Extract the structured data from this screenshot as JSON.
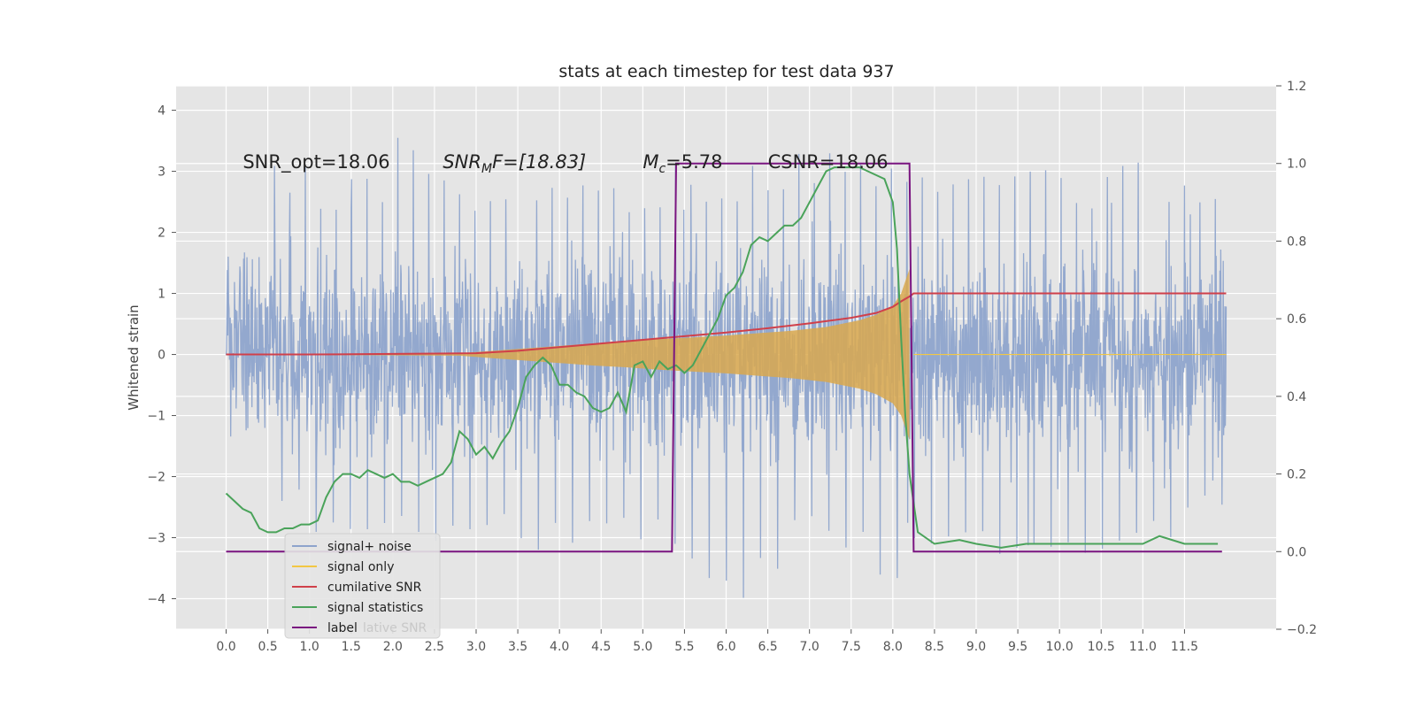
{
  "chart_data": {
    "type": "line",
    "title": "stats at each timestep for test data 937",
    "xlabel": "",
    "ylabel": "Whitened strain",
    "y2label": "",
    "xlim": [
      -0.6,
      12.6
    ],
    "ylim": [
      -4.5,
      4.4
    ],
    "y2lim": [
      -0.2,
      1.2
    ],
    "grid": true,
    "legend_position": "lower-left",
    "xticks": [
      "0.0",
      "0.5",
      "1.0",
      "1.5",
      "2.0",
      "2.5",
      "3.0",
      "3.5",
      "4.0",
      "4.5",
      "5.0",
      "5.5",
      "6.0",
      "6.5",
      "7.0",
      "7.5",
      "8.0",
      "8.5",
      "9.0",
      "9.5",
      "10.0",
      "10.5",
      "11.0",
      "11.5"
    ],
    "yticks": [
      "4",
      "3",
      "2",
      "1",
      "0",
      "−1",
      "−2",
      "−3",
      "−4"
    ],
    "y2ticks": [
      "1.2",
      "1.0",
      "0.8",
      "0.6",
      "0.4",
      "0.2",
      "0.0",
      "−0.2"
    ],
    "annotations": [
      {
        "text": "SNR_opt=18.06",
        "x": 0.2,
        "y": 3.05
      },
      {
        "text": "SNR_MF=[18.83]",
        "x": 2.6,
        "y": 3.05
      },
      {
        "text": "M_c=5.78",
        "x": 5.0,
        "y": 3.05
      },
      {
        "text": "CSNR=18.06",
        "x": 6.5,
        "y": 3.05
      }
    ],
    "legend": [
      {
        "name": "signal+ noise",
        "color": "#8ea4cc"
      },
      {
        "name": "signal only",
        "color": "#f2c744"
      },
      {
        "name": "cumilative SNR",
        "color": "#d0404a"
      },
      {
        "name": "signal statistics",
        "color": "#4aa35a"
      },
      {
        "name": "label",
        "color": "#7a1580"
      }
    ],
    "legend_hidden_text": "lative SNR",
    "series": [
      {
        "name": "signal+ noise",
        "axis": "left",
        "x_range": [
          0.0,
          12.0
        ],
        "noise_std": 0.75,
        "envelope_max": [
          1.7,
          3.1,
          2.7,
          2.9,
          3.9,
          3.0,
          2.7,
          2.6,
          2.8,
          3.0,
          2.7,
          3.2,
          2.8,
          3.1,
          3.3,
          3.3,
          3.1,
          2.9,
          3.0,
          3.1,
          3.2,
          2.6,
          3.3,
          2.9,
          2.8
        ],
        "envelope_min": [
          -1.4,
          -2.6,
          -3.0,
          -3.2,
          -3.0,
          -3.1,
          -3.0,
          -3.2,
          -3.1,
          -2.9,
          -3.1,
          -3.4,
          -4.0,
          -3.6,
          -3.1,
          -3.2,
          -4.1,
          -3.3,
          -3.2,
          -3.3,
          -3.3,
          -3.3,
          -3.2,
          -3.1,
          -2.7
        ]
      },
      {
        "name": "signal only",
        "axis": "left",
        "x": [
          0.0,
          2.8,
          3.2,
          3.6,
          4.0,
          4.4,
          4.8,
          5.2,
          5.6,
          6.0,
          6.4,
          6.8,
          7.2,
          7.6,
          7.8,
          8.0,
          8.1,
          8.15,
          8.2
        ],
        "amplitude": [
          0.0,
          0.02,
          0.06,
          0.1,
          0.14,
          0.18,
          0.21,
          0.25,
          0.28,
          0.31,
          0.35,
          0.39,
          0.45,
          0.56,
          0.65,
          0.8,
          1.0,
          1.2,
          1.4
        ]
      },
      {
        "name": "cumilative SNR",
        "axis": "left",
        "x": [
          0.0,
          1.0,
          2.0,
          3.0,
          3.5,
          4.0,
          4.5,
          5.0,
          5.5,
          6.0,
          6.5,
          7.0,
          7.5,
          7.8,
          8.0,
          8.1,
          8.2,
          8.25,
          12.0
        ],
        "y": [
          0.0,
          0.0,
          0.01,
          0.02,
          0.06,
          0.12,
          0.18,
          0.24,
          0.3,
          0.36,
          0.43,
          0.51,
          0.6,
          0.68,
          0.78,
          0.87,
          0.95,
          1.0,
          1.0
        ]
      },
      {
        "name": "signal statistics",
        "axis": "right",
        "x": [
          0.0,
          0.1,
          0.2,
          0.3,
          0.4,
          0.5,
          0.6,
          0.7,
          0.8,
          0.9,
          1.0,
          1.1,
          1.2,
          1.3,
          1.4,
          1.5,
          1.6,
          1.7,
          1.8,
          1.9,
          2.0,
          2.1,
          2.2,
          2.3,
          2.4,
          2.5,
          2.6,
          2.7,
          2.8,
          2.9,
          3.0,
          3.1,
          3.2,
          3.3,
          3.4,
          3.5,
          3.6,
          3.7,
          3.8,
          3.9,
          4.0,
          4.1,
          4.2,
          4.3,
          4.4,
          4.5,
          4.6,
          4.7,
          4.8,
          4.9,
          5.0,
          5.1,
          5.2,
          5.3,
          5.4,
          5.5,
          5.6,
          5.7,
          5.8,
          5.9,
          6.0,
          6.1,
          6.2,
          6.3,
          6.4,
          6.5,
          6.6,
          6.7,
          6.8,
          6.9,
          7.0,
          7.1,
          7.2,
          7.3,
          7.4,
          7.5,
          7.6,
          7.7,
          7.8,
          7.9,
          8.0,
          8.05,
          8.1,
          8.15,
          8.2,
          8.3,
          8.5,
          8.8,
          9.0,
          9.3,
          9.6,
          10.0,
          10.4,
          10.7,
          11.0,
          11.2,
          11.5,
          11.9
        ],
        "y": [
          0.15,
          0.13,
          0.11,
          0.1,
          0.06,
          0.05,
          0.05,
          0.06,
          0.06,
          0.07,
          0.07,
          0.08,
          0.14,
          0.18,
          0.2,
          0.2,
          0.19,
          0.21,
          0.2,
          0.19,
          0.2,
          0.18,
          0.18,
          0.17,
          0.18,
          0.19,
          0.2,
          0.23,
          0.31,
          0.29,
          0.25,
          0.27,
          0.24,
          0.28,
          0.31,
          0.37,
          0.45,
          0.48,
          0.5,
          0.48,
          0.43,
          0.43,
          0.41,
          0.4,
          0.37,
          0.36,
          0.37,
          0.41,
          0.36,
          0.48,
          0.49,
          0.45,
          0.49,
          0.47,
          0.48,
          0.46,
          0.48,
          0.52,
          0.56,
          0.6,
          0.66,
          0.68,
          0.72,
          0.79,
          0.81,
          0.8,
          0.82,
          0.84,
          0.84,
          0.86,
          0.9,
          0.94,
          0.98,
          0.99,
          0.99,
          0.99,
          0.99,
          0.98,
          0.97,
          0.96,
          0.9,
          0.78,
          0.55,
          0.35,
          0.2,
          0.05,
          0.02,
          0.03,
          0.02,
          0.01,
          0.02,
          0.02,
          0.02,
          0.02,
          0.02,
          0.04,
          0.02,
          0.02
        ]
      },
      {
        "name": "label",
        "axis": "right",
        "x": [
          0.0,
          5.35,
          5.4,
          8.2,
          8.25,
          11.95
        ],
        "y": [
          0.0,
          0.0,
          1.0,
          1.0,
          0.0,
          0.0
        ]
      }
    ]
  }
}
